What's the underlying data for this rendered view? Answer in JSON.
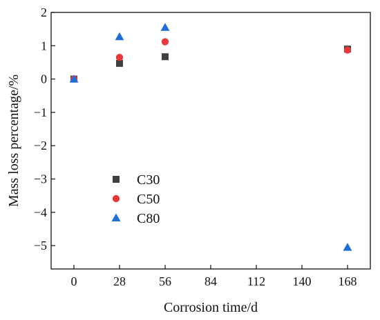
{
  "chart_data": {
    "type": "scatter",
    "title": "",
    "xlabel": "Corrosion time/d",
    "ylabel": "Mass loss percentage/%",
    "xlim": [
      -14,
      182
    ],
    "ylim": [
      -5.7,
      2
    ],
    "x_ticks": [
      0,
      28,
      56,
      84,
      112,
      140,
      168
    ],
    "y_ticks": [
      2,
      1,
      0,
      -1,
      -2,
      -3,
      -4,
      -5
    ],
    "x_tick_labels": [
      "0",
      "28",
      "56",
      "84",
      "112",
      "140",
      "168"
    ],
    "y_tick_labels": [
      "2",
      "1",
      "0",
      "−1",
      "−2",
      "−3",
      "−4",
      "−5"
    ],
    "grid": false,
    "legend_position": "lower-left",
    "series": [
      {
        "name": "C30",
        "marker": "square",
        "color": "#404040",
        "x": [
          0,
          28,
          56,
          168
        ],
        "y": [
          0,
          0.47,
          0.67,
          0.9
        ]
      },
      {
        "name": "C50",
        "marker": "circle",
        "color": "#e8383c",
        "x": [
          0,
          28,
          56,
          168
        ],
        "y": [
          0,
          0.65,
          1.12,
          0.87
        ]
      },
      {
        "name": "C80",
        "marker": "triangle",
        "color": "#1f6fd6",
        "x": [
          0,
          28,
          56,
          168
        ],
        "y": [
          0,
          1.27,
          1.55,
          -5.05
        ]
      }
    ]
  }
}
